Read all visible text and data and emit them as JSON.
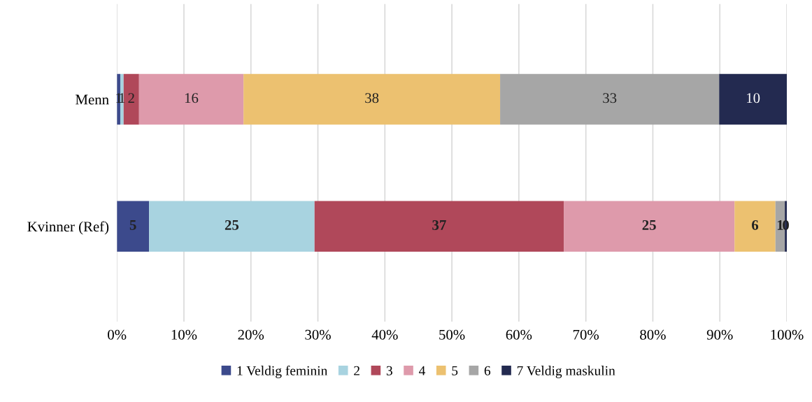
{
  "chart_data": {
    "type": "bar",
    "orientation": "horizontal",
    "stacked": true,
    "categories": [
      "Menn",
      "Kvinner (Ref)"
    ],
    "series": [
      {
        "name": "1 Veldig feminin",
        "color": "#3c4a8c",
        "values": [
          0.5,
          4.8
        ],
        "value_labels": [
          "1",
          "5"
        ]
      },
      {
        "name": "2",
        "color": "#a8d3e0",
        "values": [
          0.5,
          24.7
        ],
        "value_labels": [
          "1",
          "25"
        ]
      },
      {
        "name": "3",
        "color": "#b0485a",
        "values": [
          2.3,
          37.2
        ],
        "value_labels": [
          "2",
          "37"
        ]
      },
      {
        "name": "4",
        "color": "#de9aab",
        "values": [
          15.6,
          25.5
        ],
        "value_labels": [
          "16",
          "25"
        ]
      },
      {
        "name": "5",
        "color": "#ecc170",
        "values": [
          38.3,
          6.1
        ],
        "value_labels": [
          "38",
          "6"
        ]
      },
      {
        "name": "6",
        "color": "#a6a6a6",
        "values": [
          32.7,
          1.4
        ],
        "value_labels": [
          "33",
          "1"
        ]
      },
      {
        "name": "7 Veldig maskulin",
        "color": "#232a50",
        "values": [
          10.1,
          0.3
        ],
        "value_labels": [
          "10",
          "0"
        ]
      }
    ],
    "xlim": [
      0,
      100
    ],
    "xticks": [
      {
        "value": 0,
        "label": "0%"
      },
      {
        "value": 10,
        "label": "10%"
      },
      {
        "value": 20,
        "label": "20%"
      },
      {
        "value": 30,
        "label": "30%"
      },
      {
        "value": 40,
        "label": "40%"
      },
      {
        "value": 50,
        "label": "50%"
      },
      {
        "value": 60,
        "label": "60%"
      },
      {
        "value": 70,
        "label": "70%"
      },
      {
        "value": 80,
        "label": "80%"
      },
      {
        "value": 90,
        "label": "90%"
      },
      {
        "value": 100,
        "label": "100%"
      }
    ],
    "grid": "x",
    "legend": "bottom"
  }
}
